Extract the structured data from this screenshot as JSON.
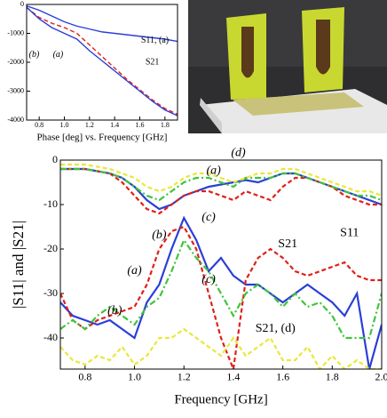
{
  "chart_data": [
    {
      "type": "line",
      "x_label": "Phase [deg] vs. Frequency [GHz]",
      "x": [
        0.7,
        0.8,
        0.9,
        1.0,
        1.1,
        1.2,
        1.3,
        1.4,
        1.5,
        1.6,
        1.7,
        1.8,
        1.9
      ],
      "series": [
        {
          "color": "#2a3fd6",
          "style": "solid",
          "values": [
            -50,
            -200,
            -400,
            -600,
            -750,
            -850,
            -950,
            -1000,
            -1050,
            -1100,
            -1150,
            -1200,
            -1280
          ]
        },
        {
          "color": "#e0201a",
          "style": "dashed",
          "values": [
            -100,
            -450,
            -650,
            -800,
            -1000,
            -1400,
            -1800,
            -2200,
            -2600,
            -2950,
            -3300,
            -3600,
            -3800
          ]
        },
        {
          "color": "#2a3fd6",
          "style": "solid",
          "values": [
            -100,
            -500,
            -800,
            -1000,
            -1200,
            -1600,
            -1950,
            -2300,
            -2650,
            -3000,
            -3350,
            -3650,
            -3850
          ]
        }
      ],
      "xlim": [
        0.7,
        1.9
      ],
      "ylim": [
        -4000,
        0
      ],
      "xticks": [
        0.8,
        {
          "value": 1,
          "label": "1.0"
        },
        1.2,
        1.4,
        1.6,
        1.8
      ],
      "yticks": [
        0,
        -1000,
        -2000,
        -3000,
        -4000
      ],
      "annotations": [
        "(b)",
        "(a)",
        "S11, (a)",
        "S21"
      ]
    },
    {
      "type": "line",
      "x_label": "Frequency [GHz]",
      "y_label": "|S11| and |S21|",
      "x": [
        0.7,
        0.75,
        0.8,
        0.85,
        0.9,
        0.95,
        1.0,
        1.05,
        1.1,
        1.15,
        1.2,
        1.25,
        1.3,
        1.35,
        1.4,
        1.45,
        1.5,
        1.55,
        1.6,
        1.65,
        1.7,
        1.75,
        1.8,
        1.85,
        1.9,
        1.95,
        2.0
      ],
      "series": [
        {
          "color": "#2a3fd6",
          "style": "solid",
          "values": [
            -2,
            -2,
            -2,
            -2.5,
            -3,
            -4,
            -6,
            -9,
            -11,
            -10,
            -8,
            -7,
            -6,
            -5.5,
            -5,
            -4.5,
            -5,
            -4,
            -3,
            -3,
            -4,
            -5,
            -6,
            -7,
            -8,
            -9,
            -10
          ]
        },
        {
          "color": "#e0201a",
          "style": "dashed",
          "values": [
            -2,
            -2,
            -2,
            -2.5,
            -3,
            -5,
            -8,
            -11,
            -12,
            -10,
            -8,
            -7,
            -7,
            -8,
            -9,
            -7,
            -8,
            -9,
            -6,
            -4,
            -4,
            -5,
            -6,
            -8,
            -9,
            -10,
            -10
          ]
        },
        {
          "color": "#3fc43a",
          "style": "dashdot",
          "values": [
            -2,
            -2,
            -2,
            -2.5,
            -3,
            -4,
            -6,
            -8,
            -9,
            -7,
            -5,
            -4,
            -4,
            -5,
            -6,
            -4,
            -4,
            -4,
            -3,
            -3,
            -4,
            -5,
            -6,
            -7,
            -8,
            -8,
            -9
          ]
        },
        {
          "color": "#e8e83a",
          "style": "dashed",
          "values": [
            -1,
            -1,
            -1,
            -1.5,
            -2,
            -3,
            -4,
            -6,
            -7,
            -6,
            -4,
            -3,
            -3,
            -4,
            -5,
            -4,
            -3,
            -3,
            -2,
            -2,
            -3,
            -4,
            -5,
            -6,
            -7,
            -7,
            -8
          ]
        },
        {
          "color": "#2a3fd6",
          "style": "solid",
          "values": [
            -32,
            -35,
            -36,
            -37,
            -36,
            -38,
            -40,
            -32,
            -28,
            -20,
            -13,
            -18,
            -25,
            -22,
            -26,
            -28,
            -28,
            -30,
            -32,
            -30,
            -28,
            -30,
            -32,
            -35,
            -30,
            -47,
            -37
          ]
        },
        {
          "color": "#e0201a",
          "style": "dashed",
          "values": [
            -30,
            -36,
            -38,
            -36,
            -35,
            -34,
            -33,
            -28,
            -20,
            -16,
            -15,
            -20,
            -30,
            -40,
            -47,
            -27,
            -22,
            -20,
            -22,
            -25,
            -26,
            -25,
            -24,
            -23,
            -26,
            -27,
            -27
          ]
        },
        {
          "color": "#3fc43a",
          "style": "dashdot",
          "values": [
            -38,
            -36,
            -38,
            -35,
            -33,
            -35,
            -37,
            -33,
            -31,
            -25,
            -18,
            -22,
            -25,
            -30,
            -35,
            -30,
            -28,
            -30,
            -33,
            -30,
            -33,
            -32,
            -35,
            -40,
            -40,
            -40,
            -30
          ]
        },
        {
          "color": "#e8e83a",
          "style": "dashed",
          "values": [
            -42,
            -45,
            -46,
            -44,
            -45,
            -42,
            -46,
            -44,
            -40,
            -40,
            -38,
            -40,
            -42,
            -44,
            -40,
            -44,
            -42,
            -40,
            -45,
            -45,
            -42,
            -47,
            -44,
            -47,
            -45,
            -47,
            -47
          ]
        }
      ],
      "xlim": [
        0.7,
        2.0
      ],
      "ylim": [
        -47,
        0
      ],
      "xticks": [
        0.8,
        {
          "value": 1,
          "label": "1.0"
        },
        1.2,
        1.4,
        1.6,
        1.8,
        {
          "value": 2,
          "label": "2.0"
        }
      ],
      "yticks": [
        0,
        -10,
        -20,
        -30,
        -40
      ],
      "annotations": [
        "(a)",
        "(d)",
        "(b)",
        "(c)",
        "(a)",
        "(b)",
        "(c)",
        "S21",
        "S11",
        "S21, (d)"
      ]
    }
  ]
}
